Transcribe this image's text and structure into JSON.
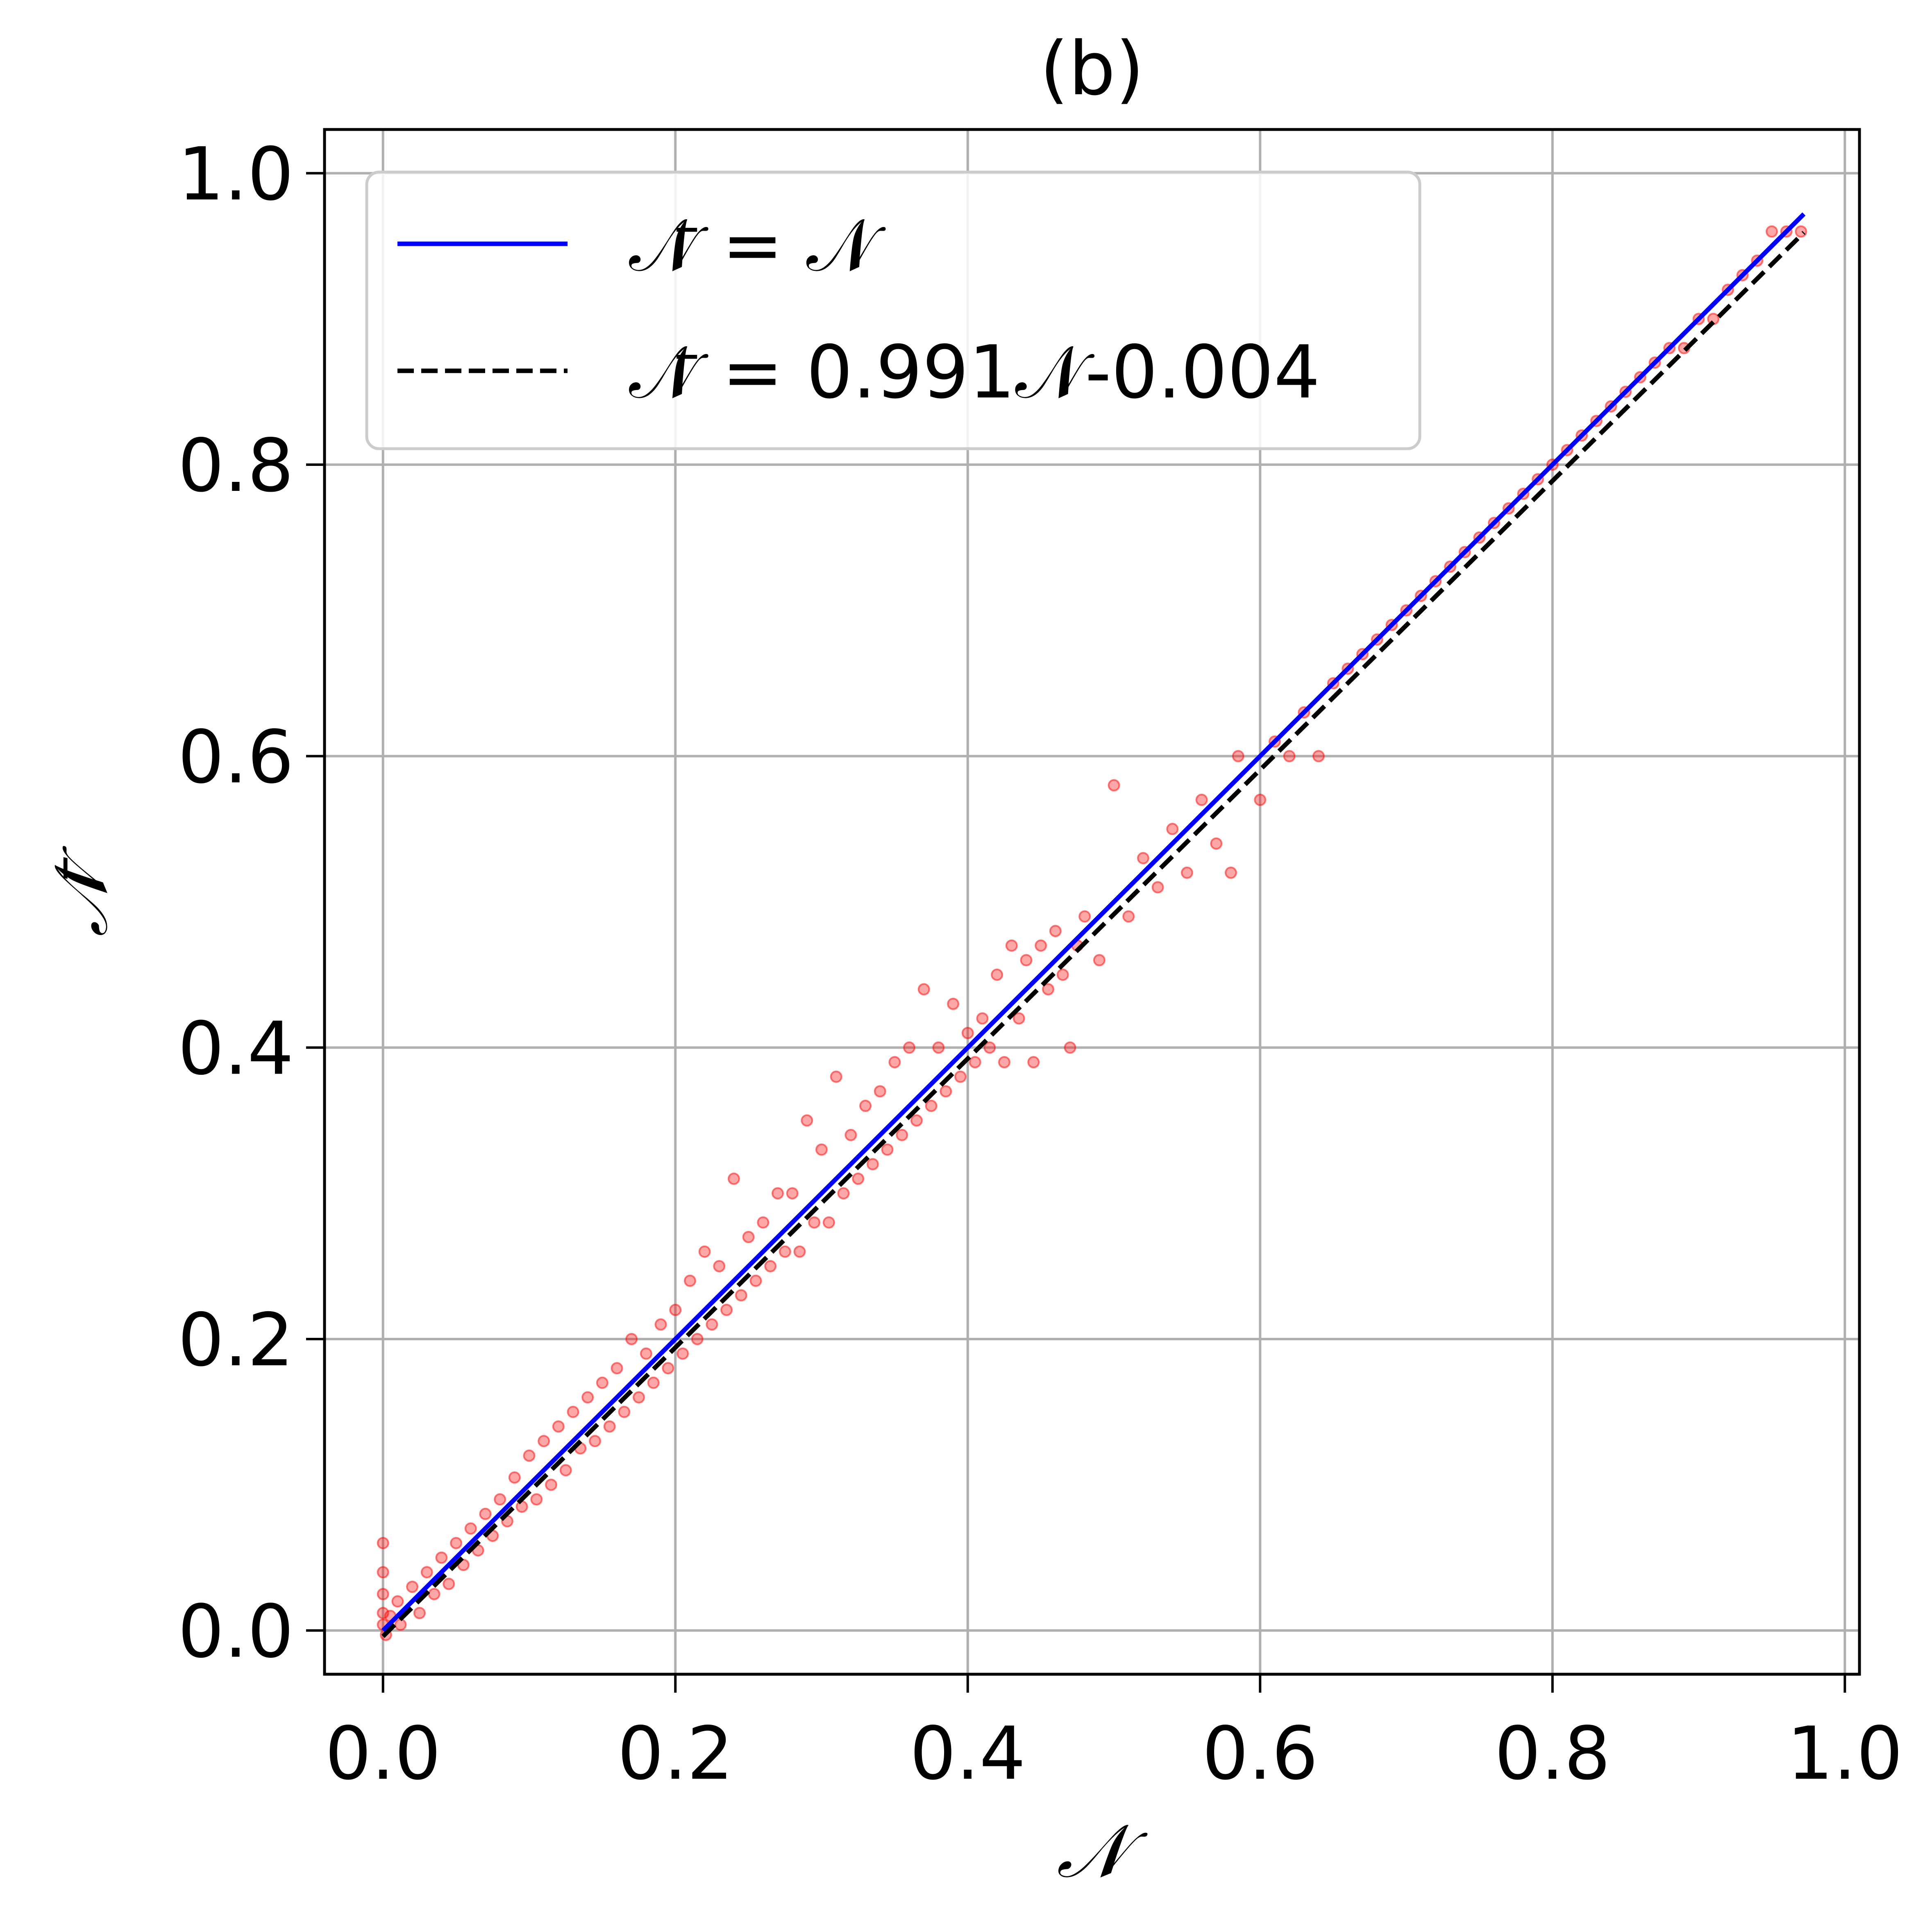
{
  "chart_data": {
    "type": "scatter",
    "title": "(b)",
    "xlabel": "𝒩",
    "ylabel": "𝒩̄",
    "xlim": [
      -0.04,
      1.01
    ],
    "ylim": [
      -0.03,
      1.03
    ],
    "xticks": [
      0.0,
      0.2,
      0.4,
      0.6,
      0.8,
      1.0
    ],
    "yticks": [
      0.0,
      0.2,
      0.4,
      0.6,
      0.8,
      1.0
    ],
    "xtick_labels": [
      "0.0",
      "0.2",
      "0.4",
      "0.6",
      "0.8",
      "1.0"
    ],
    "ytick_labels": [
      "0.0",
      "0.2",
      "0.4",
      "0.6",
      "0.8",
      "1.0"
    ],
    "grid": true,
    "legend_position": "top-left",
    "series": [
      {
        "name": "𝒩̄ = 𝒩",
        "kind": "line",
        "style": "solid",
        "color": "#0000ff",
        "x": [
          0.0,
          0.972
        ],
        "y": [
          0.0,
          0.972
        ]
      },
      {
        "name": "𝒩̄ = 0.991𝒩-0.004",
        "kind": "line",
        "style": "dashed",
        "color": "#000000",
        "slope": 0.991,
        "intercept": -0.004,
        "x": [
          0.0,
          0.972
        ],
        "y": [
          -0.004,
          0.9593
        ]
      },
      {
        "kind": "scatter",
        "color": "#ff0000",
        "points": [
          [
            0.0,
            0.004
          ],
          [
            0.0,
            0.012
          ],
          [
            0.0,
            0.025
          ],
          [
            0.0,
            0.04
          ],
          [
            0.0,
            0.06
          ],
          [
            0.002,
            -0.003
          ],
          [
            0.005,
            0.01
          ],
          [
            0.01,
            0.02
          ],
          [
            0.012,
            0.004
          ],
          [
            0.02,
            0.03
          ],
          [
            0.025,
            0.012
          ],
          [
            0.03,
            0.04
          ],
          [
            0.035,
            0.025
          ],
          [
            0.04,
            0.05
          ],
          [
            0.045,
            0.032
          ],
          [
            0.05,
            0.06
          ],
          [
            0.055,
            0.045
          ],
          [
            0.06,
            0.07
          ],
          [
            0.065,
            0.055
          ],
          [
            0.07,
            0.08
          ],
          [
            0.075,
            0.065
          ],
          [
            0.08,
            0.09
          ],
          [
            0.085,
            0.075
          ],
          [
            0.09,
            0.105
          ],
          [
            0.095,
            0.085
          ],
          [
            0.1,
            0.12
          ],
          [
            0.105,
            0.09
          ],
          [
            0.11,
            0.13
          ],
          [
            0.115,
            0.1
          ],
          [
            0.12,
            0.14
          ],
          [
            0.125,
            0.11
          ],
          [
            0.13,
            0.15
          ],
          [
            0.135,
            0.125
          ],
          [
            0.14,
            0.16
          ],
          [
            0.145,
            0.13
          ],
          [
            0.15,
            0.17
          ],
          [
            0.155,
            0.14
          ],
          [
            0.16,
            0.18
          ],
          [
            0.165,
            0.15
          ],
          [
            0.17,
            0.2
          ],
          [
            0.175,
            0.16
          ],
          [
            0.18,
            0.19
          ],
          [
            0.185,
            0.17
          ],
          [
            0.19,
            0.21
          ],
          [
            0.195,
            0.18
          ],
          [
            0.2,
            0.22
          ],
          [
            0.205,
            0.19
          ],
          [
            0.21,
            0.24
          ],
          [
            0.215,
            0.2
          ],
          [
            0.22,
            0.26
          ],
          [
            0.225,
            0.21
          ],
          [
            0.23,
            0.25
          ],
          [
            0.235,
            0.22
          ],
          [
            0.24,
            0.31
          ],
          [
            0.245,
            0.23
          ],
          [
            0.25,
            0.27
          ],
          [
            0.255,
            0.24
          ],
          [
            0.26,
            0.28
          ],
          [
            0.265,
            0.25
          ],
          [
            0.27,
            0.3
          ],
          [
            0.275,
            0.26
          ],
          [
            0.28,
            0.3
          ],
          [
            0.285,
            0.26
          ],
          [
            0.29,
            0.35
          ],
          [
            0.295,
            0.28
          ],
          [
            0.3,
            0.33
          ],
          [
            0.305,
            0.28
          ],
          [
            0.31,
            0.38
          ],
          [
            0.315,
            0.3
          ],
          [
            0.32,
            0.34
          ],
          [
            0.325,
            0.31
          ],
          [
            0.33,
            0.36
          ],
          [
            0.335,
            0.32
          ],
          [
            0.34,
            0.37
          ],
          [
            0.345,
            0.33
          ],
          [
            0.35,
            0.39
          ],
          [
            0.355,
            0.34
          ],
          [
            0.36,
            0.4
          ],
          [
            0.365,
            0.35
          ],
          [
            0.37,
            0.44
          ],
          [
            0.375,
            0.36
          ],
          [
            0.38,
            0.4
          ],
          [
            0.385,
            0.37
          ],
          [
            0.39,
            0.43
          ],
          [
            0.395,
            0.38
          ],
          [
            0.4,
            0.41
          ],
          [
            0.405,
            0.39
          ],
          [
            0.41,
            0.42
          ],
          [
            0.415,
            0.4
          ],
          [
            0.42,
            0.45
          ],
          [
            0.425,
            0.39
          ],
          [
            0.43,
            0.47
          ],
          [
            0.435,
            0.42
          ],
          [
            0.44,
            0.46
          ],
          [
            0.445,
            0.39
          ],
          [
            0.45,
            0.47
          ],
          [
            0.455,
            0.44
          ],
          [
            0.46,
            0.48
          ],
          [
            0.465,
            0.45
          ],
          [
            0.47,
            0.4
          ],
          [
            0.475,
            0.47
          ],
          [
            0.48,
            0.49
          ],
          [
            0.49,
            0.46
          ],
          [
            0.5,
            0.58
          ],
          [
            0.51,
            0.49
          ],
          [
            0.52,
            0.53
          ],
          [
            0.53,
            0.51
          ],
          [
            0.54,
            0.55
          ],
          [
            0.55,
            0.52
          ],
          [
            0.56,
            0.57
          ],
          [
            0.57,
            0.54
          ],
          [
            0.58,
            0.52
          ],
          [
            0.585,
            0.6
          ],
          [
            0.6,
            0.57
          ],
          [
            0.61,
            0.61
          ],
          [
            0.62,
            0.6
          ],
          [
            0.63,
            0.63
          ],
          [
            0.64,
            0.6
          ],
          [
            0.65,
            0.65
          ],
          [
            0.66,
            0.66
          ],
          [
            0.67,
            0.67
          ],
          [
            0.68,
            0.68
          ],
          [
            0.69,
            0.69
          ],
          [
            0.7,
            0.7
          ],
          [
            0.71,
            0.71
          ],
          [
            0.72,
            0.72
          ],
          [
            0.73,
            0.73
          ],
          [
            0.74,
            0.74
          ],
          [
            0.75,
            0.75
          ],
          [
            0.76,
            0.76
          ],
          [
            0.77,
            0.77
          ],
          [
            0.78,
            0.78
          ],
          [
            0.79,
            0.79
          ],
          [
            0.8,
            0.8
          ],
          [
            0.81,
            0.81
          ],
          [
            0.82,
            0.82
          ],
          [
            0.83,
            0.83
          ],
          [
            0.84,
            0.84
          ],
          [
            0.85,
            0.85
          ],
          [
            0.86,
            0.86
          ],
          [
            0.87,
            0.87
          ],
          [
            0.88,
            0.88
          ],
          [
            0.89,
            0.88
          ],
          [
            0.9,
            0.9
          ],
          [
            0.91,
            0.9
          ],
          [
            0.92,
            0.92
          ],
          [
            0.93,
            0.93
          ],
          [
            0.94,
            0.94
          ],
          [
            0.95,
            0.96
          ],
          [
            0.96,
            0.96
          ],
          [
            0.97,
            0.96
          ]
        ]
      }
    ]
  },
  "legend": {
    "entries": [
      {
        "label": "𝒩̄ = 𝒩",
        "color": "#0000ff",
        "style": "solid"
      },
      {
        "label": "𝒩̄ = 0.991𝒩-0.004",
        "color": "#000000",
        "style": "dashed"
      }
    ]
  }
}
